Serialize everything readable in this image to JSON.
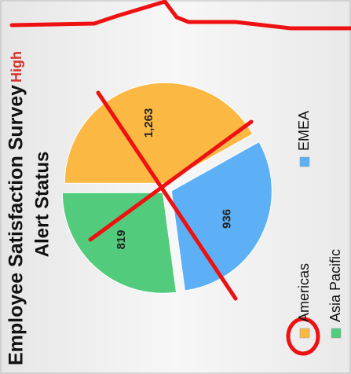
{
  "chart_data": {
    "type": "pie",
    "title": "Employee Satisfaction Survey",
    "subtitle": "Alert Status",
    "status": "High",
    "categories": [
      "Americas",
      "EMEA",
      "Asia Pacific"
    ],
    "values": [
      1263,
      936,
      819
    ],
    "value_labels": [
      "1,263",
      "936",
      "819"
    ],
    "colors": [
      "#fbb843",
      "#5db0f6",
      "#52cc7c"
    ],
    "legend": "right"
  }
}
